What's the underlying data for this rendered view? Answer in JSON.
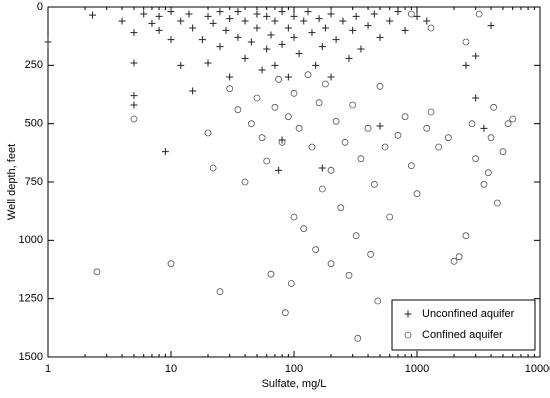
{
  "chart_data": {
    "type": "scatter",
    "xlabel": "Sulfate, mg/L",
    "ylabel": "Well depth, feet",
    "xscale": "log",
    "xlim": [
      1,
      10000
    ],
    "xticks": [
      1,
      10,
      100,
      1000,
      10000
    ],
    "ylim": [
      1500,
      0
    ],
    "yticks": [
      0,
      250,
      500,
      750,
      1000,
      1250,
      1500
    ],
    "legend": "lower right",
    "series": [
      {
        "name": "Unconfined aquifer",
        "marker": "plus",
        "color": "#222222",
        "x": [
          2.3,
          1,
          4,
          5,
          5,
          5,
          5,
          6,
          7,
          8,
          8,
          9,
          10,
          10,
          12,
          12,
          14,
          15,
          15,
          18,
          20,
          20,
          22,
          25,
          25,
          28,
          30,
          30,
          35,
          35,
          40,
          40,
          45,
          50,
          50,
          55,
          60,
          60,
          65,
          70,
          70,
          75,
          80,
          80,
          90,
          90,
          100,
          100,
          110,
          120,
          130,
          140,
          150,
          160,
          170,
          180,
          200,
          200,
          220,
          250,
          280,
          300,
          320,
          350,
          400,
          450,
          500,
          500,
          600,
          700,
          800,
          1000,
          1200,
          3000,
          3500,
          2500,
          4000,
          3000,
          170,
          80
        ],
        "y": [
          35,
          150,
          60,
          110,
          240,
          380,
          420,
          30,
          70,
          40,
          100,
          620,
          20,
          140,
          60,
          250,
          30,
          90,
          360,
          140,
          40,
          240,
          70,
          20,
          170,
          100,
          50,
          300,
          130,
          20,
          60,
          220,
          150,
          30,
          90,
          270,
          180,
          40,
          120,
          60,
          250,
          700,
          20,
          160,
          90,
          300,
          40,
          130,
          200,
          60,
          20,
          110,
          250,
          50,
          170,
          90,
          30,
          300,
          140,
          60,
          220,
          100,
          40,
          180,
          80,
          30,
          130,
          510,
          60,
          20,
          100,
          40,
          60,
          390,
          520,
          250,
          80,
          210,
          690,
          570
        ]
      },
      {
        "name": "Confined aquifer",
        "marker": "circle",
        "color": "#555555",
        "x": [
          2.5,
          5,
          10,
          20,
          22,
          25,
          30,
          35,
          40,
          45,
          50,
          55,
          60,
          65,
          70,
          75,
          80,
          85,
          90,
          95,
          100,
          100,
          110,
          120,
          130,
          140,
          150,
          160,
          170,
          180,
          200,
          200,
          220,
          240,
          260,
          280,
          300,
          320,
          330,
          350,
          400,
          420,
          450,
          480,
          500,
          550,
          600,
          700,
          800,
          900,
          1000,
          1200,
          1300,
          1500,
          1800,
          2000,
          2200,
          2500,
          2800,
          3000,
          3200,
          3500,
          4000,
          4500,
          5000,
          5500,
          6000,
          4200,
          900,
          1300,
          2500,
          3800
        ],
        "y": [
          1135,
          480,
          1100,
          540,
          690,
          1220,
          350,
          440,
          750,
          500,
          390,
          560,
          660,
          1145,
          430,
          310,
          580,
          1310,
          470,
          1185,
          370,
          900,
          520,
          950,
          290,
          600,
          1040,
          410,
          780,
          330,
          700,
          1100,
          490,
          860,
          580,
          1150,
          420,
          980,
          1420,
          650,
          520,
          1060,
          760,
          1260,
          340,
          600,
          900,
          550,
          470,
          680,
          800,
          520,
          450,
          600,
          560,
          1090,
          1070,
          980,
          500,
          650,
          30,
          760,
          560,
          840,
          620,
          500,
          480,
          430,
          30,
          90,
          150,
          710
        ]
      }
    ]
  }
}
